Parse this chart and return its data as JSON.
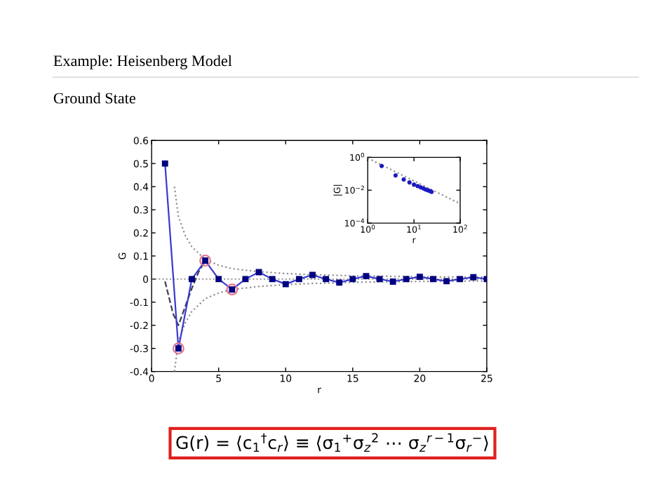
{
  "chart_data": [
    {
      "type": "line",
      "title": "Example: Heisenberg Model",
      "subtitle": "Ground State",
      "xlabel": "r",
      "ylabel": "G",
      "annotations": [
        "G(r) = ⟨c$_{1}$$^{†}$c$_{r}$⟩ ≡ ⟨σ$_{1}$$^{+}$σ$_{z}$$^{2}$ ⋯ σ$_{z}$$^{r−1}$σ$_{r}$$^{−}$⟩"
      ],
      "xlim": [
        0,
        25
      ],
      "ylim": [
        -0.4,
        0.6
      ],
      "xticks": [
        0,
        5,
        10,
        15,
        20,
        25
      ],
      "yticks": [
        -0.4,
        -0.3,
        -0.2,
        -0.1,
        0,
        0.1,
        0.2,
        0.3,
        0.4,
        0.5,
        0.6
      ],
      "ref_lines": [
        {
          "axis": "y",
          "value": 0,
          "color": "#888888",
          "line_style": "dotted"
        }
      ],
      "series": [
        {
          "color": "#909090",
          "line_style": "dotted",
          "marker": "none",
          "x": [
            1.7,
            2,
            2.5,
            3,
            4,
            5,
            6,
            8,
            10,
            12,
            15,
            20,
            25
          ],
          "values": [
            0.4,
            0.27,
            0.19,
            0.14,
            0.085,
            0.06,
            0.045,
            0.032,
            0.024,
            0.019,
            0.014,
            0.01,
            0.008
          ]
        },
        {
          "color": "#909090",
          "line_style": "dotted",
          "marker": "none",
          "x": [
            1.7,
            2,
            2.5,
            3,
            4,
            5,
            6,
            8,
            10,
            12,
            15,
            20,
            25
          ],
          "values": [
            -0.4,
            -0.27,
            -0.19,
            -0.14,
            -0.085,
            -0.06,
            -0.045,
            -0.032,
            -0.024,
            -0.019,
            -0.014,
            -0.01,
            -0.008
          ]
        },
        {
          "color": "#404050",
          "line_style": "dashed",
          "marker": "none",
          "x": [
            1,
            1.3,
            1.6,
            2,
            2.5,
            3,
            3.5,
            4
          ],
          "values": [
            -0.01,
            -0.08,
            -0.15,
            -0.2,
            -0.12,
            -0.04,
            0.03,
            0.08
          ]
        },
        {
          "color": "#3a3ad0",
          "line_style": "solid",
          "marker": "square",
          "x": [
            1,
            2,
            3,
            4,
            5,
            6,
            7,
            8,
            9,
            10,
            11,
            12,
            13,
            14,
            15,
            16,
            17,
            18,
            19,
            20,
            21,
            22,
            23,
            24,
            25
          ],
          "values": [
            0.5,
            -0.3,
            0,
            0.08,
            0,
            -0.045,
            0,
            0.03,
            0,
            -0.022,
            0,
            0.018,
            0,
            -0.015,
            0,
            0.013,
            0,
            -0.011,
            0,
            0.01,
            0,
            -0.009,
            0,
            0.008,
            0
          ]
        },
        {
          "type": "scatter",
          "color": "#e07890",
          "marker": "circle",
          "x": [
            2,
            4,
            6
          ],
          "values": [
            -0.3,
            0.08,
            -0.045
          ]
        }
      ]
    },
    {
      "type": "scatter",
      "xlabel": "r",
      "ylabel": "|G|",
      "log": "xy",
      "xlim": [
        1,
        100
      ],
      "ylim": [
        0.0001,
        1
      ],
      "xticks": [
        {
          "value": 1,
          "label": "10$^{0}$"
        },
        {
          "value": 10,
          "label": "10$^{1}$"
        },
        {
          "value": 100,
          "label": "10$^{2}$"
        }
      ],
      "yticks": [
        {
          "value": 0.0001,
          "label": "10$^{−4}$"
        },
        {
          "value": 0.01,
          "label": "10$^{−2}$"
        },
        {
          "value": 1,
          "label": "10$^{0}$"
        }
      ],
      "series": [
        {
          "type": "line",
          "color": "#909090",
          "line_style": "dotted",
          "marker": "none",
          "x": [
            1,
            100
          ],
          "values": [
            0.9,
            0.0015
          ]
        },
        {
          "color": "#1a1ac0",
          "marker": "circle",
          "x": [
            2,
            4,
            6,
            8,
            10,
            12,
            14,
            16,
            18,
            20,
            22,
            24
          ],
          "values": [
            0.3,
            0.08,
            0.045,
            0.03,
            0.022,
            0.018,
            0.015,
            0.013,
            0.011,
            0.01,
            0.009,
            0.008
          ]
        }
      ]
    }
  ]
}
